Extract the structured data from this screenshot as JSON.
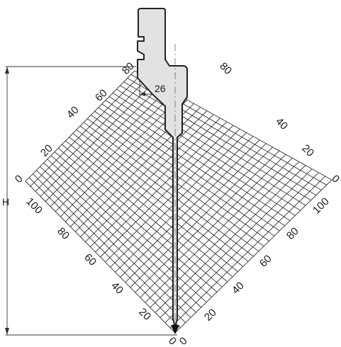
{
  "diagram": {
    "height_label": "H",
    "width_label": "26",
    "left_axis_ticks": [
      "0",
      "20",
      "40",
      "60",
      "80"
    ],
    "right_axis_ticks": [
      "80",
      "40",
      "20",
      "0"
    ],
    "lower_left_ticks": [
      "100",
      "80",
      "60",
      "40",
      "20",
      "0"
    ],
    "lower_right_ticks": [
      "100",
      "80",
      "60",
      "40",
      "20",
      "0"
    ],
    "colors": {
      "tool_fill": "#e2e2e2",
      "outline": "#222222",
      "grid": "#333333"
    }
  }
}
